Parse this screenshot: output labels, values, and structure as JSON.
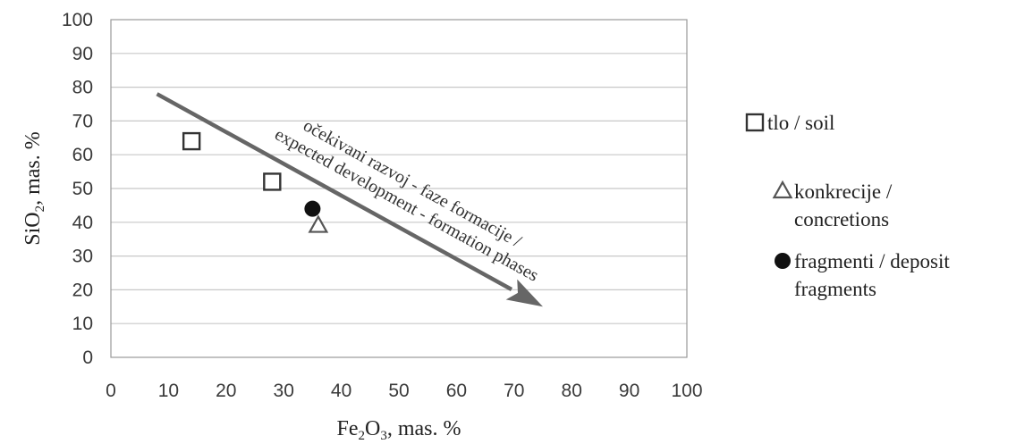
{
  "chart_data": {
    "type": "scatter",
    "x_label": {
      "pre": "Fe",
      "sub1": "2",
      "mid": "O",
      "sub2": "3",
      "post": ", mas. %"
    },
    "y_label": {
      "pre": "SiO",
      "sub1": "2",
      "post": ", mas. %"
    },
    "xlim": [
      0,
      100
    ],
    "ylim": [
      0,
      100
    ],
    "x_ticks": [
      "0",
      "10",
      "20",
      "30",
      "40",
      "50",
      "60",
      "70",
      "80",
      "90",
      "100"
    ],
    "y_ticks": [
      "0",
      "10",
      "20",
      "30",
      "40",
      "50",
      "60",
      "70",
      "80",
      "90",
      "100"
    ],
    "grid": "horizontal",
    "legend_position": "right",
    "series": [
      {
        "name": "tlo / soil",
        "marker": "square",
        "color": "#333333",
        "points": [
          {
            "x": 14,
            "y": 64
          },
          {
            "x": 28,
            "y": 52
          }
        ]
      },
      {
        "name": "konkrecije / concretions",
        "marker": "triangle",
        "color": "#555555",
        "points": [
          {
            "x": 36,
            "y": 39
          }
        ]
      },
      {
        "name": "fragmenti / deposit fragments",
        "marker": "circle",
        "color": "#111111",
        "points": [
          {
            "x": 35,
            "y": 44
          }
        ]
      }
    ],
    "legend_lines": [
      [
        "tlo / soil"
      ],
      [
        "konkrecije /",
        "concretions"
      ],
      [
        "fragmenti / deposit",
        "fragments"
      ]
    ],
    "annotation": {
      "lines": [
        "očekivani razvoj - faze formacije /",
        "expected development - formation phases"
      ],
      "arrow_color": "#666666",
      "arrow_from": {
        "x": 8,
        "y": 78
      },
      "arrow_to": {
        "x": 75,
        "y": 15
      }
    }
  }
}
